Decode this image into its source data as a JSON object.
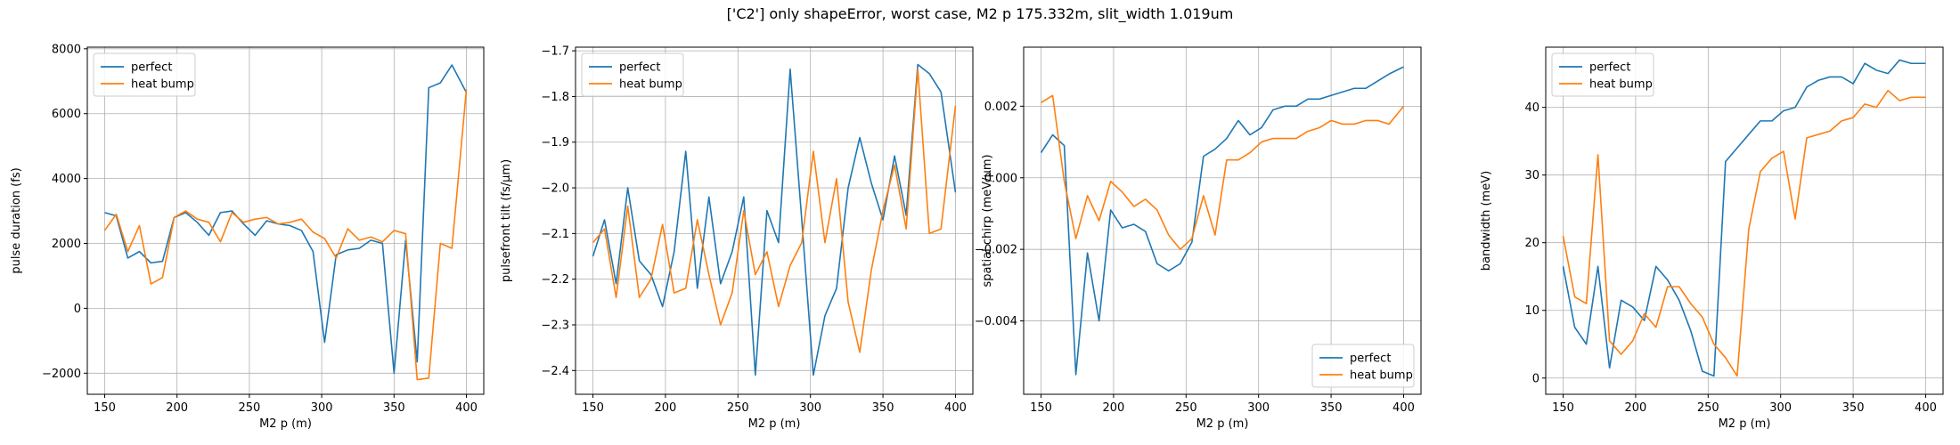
{
  "title": "['C2'] only shapeError, worst case, M2 p 175.332m, slit_width 1.019um",
  "colors": {
    "perfect": "#1f77b4",
    "heat_bump": "#ff7f0e",
    "grid": "#b0b0b0"
  },
  "chart_data": [
    {
      "type": "line",
      "xlabel": "M2 p (m)",
      "ylabel": "pulse duration (fs)",
      "xlim": [
        138,
        412
      ],
      "ylim": [
        -2650,
        8050
      ],
      "xticks": [
        150,
        200,
        250,
        300,
        350,
        400
      ],
      "yticks": [
        -2000,
        0,
        2000,
        4000,
        6000,
        8000
      ],
      "grid": true,
      "legend": "upper left",
      "x": [
        150,
        158,
        166,
        174,
        182,
        190,
        198,
        206,
        214,
        222,
        230,
        238,
        246,
        254,
        262,
        270,
        278,
        286,
        294,
        302,
        310,
        318,
        326,
        334,
        342,
        350,
        358,
        366,
        374,
        382,
        390,
        400
      ],
      "series": [
        {
          "name": "perfect",
          "values": [
            2950,
            2850,
            1550,
            1750,
            1400,
            1450,
            2800,
            2950,
            2650,
            2250,
            2950,
            3000,
            2600,
            2250,
            2700,
            2600,
            2550,
            2400,
            1750,
            -1050,
            1650,
            1800,
            1850,
            2100,
            2000,
            -2000,
            2100,
            -1650,
            6800,
            6950,
            7500,
            6650
          ]
        },
        {
          "name": "heat bump",
          "values": [
            2400,
            2900,
            1750,
            2550,
            750,
            950,
            2800,
            3000,
            2750,
            2650,
            2050,
            2950,
            2650,
            2750,
            2800,
            2600,
            2650,
            2750,
            2350,
            2150,
            1550,
            2450,
            2100,
            2200,
            2050,
            2400,
            2300,
            -2200,
            -2150,
            2000,
            1850,
            6750
          ]
        }
      ]
    },
    {
      "type": "line",
      "xlabel": "M2 p (m)",
      "ylabel": "pulsefront tilt (fs/μm)",
      "xlim": [
        138,
        412
      ],
      "ylim": [
        -2.452,
        -1.692
      ],
      "xticks": [
        150,
        200,
        250,
        300,
        350,
        400
      ],
      "yticks": [
        -2.4,
        -2.3,
        -2.2,
        -2.1,
        -2.0,
        -1.9,
        -1.8,
        -1.7
      ],
      "grid": true,
      "legend": "upper left",
      "x": [
        150,
        158,
        166,
        174,
        182,
        190,
        198,
        206,
        214,
        222,
        230,
        238,
        246,
        254,
        262,
        270,
        278,
        286,
        294,
        302,
        310,
        318,
        326,
        334,
        342,
        350,
        358,
        366,
        374,
        382,
        390,
        400
      ],
      "series": [
        {
          "name": "perfect",
          "values": [
            -2.15,
            -2.07,
            -2.21,
            -2.0,
            -2.16,
            -2.19,
            -2.26,
            -2.14,
            -1.92,
            -2.22,
            -2.02,
            -2.21,
            -2.14,
            -2.02,
            -2.41,
            -2.05,
            -2.12,
            -1.74,
            -2.07,
            -2.41,
            -2.28,
            -2.22,
            -2.0,
            -1.89,
            -1.99,
            -2.07,
            -1.93,
            -2.06,
            -1.73,
            -1.75,
            -1.79,
            -2.01
          ]
        },
        {
          "name": "heat bump",
          "values": [
            -2.12,
            -2.09,
            -2.24,
            -2.04,
            -2.24,
            -2.2,
            -2.08,
            -2.23,
            -2.22,
            -2.07,
            -2.19,
            -2.3,
            -2.23,
            -2.05,
            -2.19,
            -2.14,
            -2.26,
            -2.17,
            -2.12,
            -1.92,
            -2.12,
            -1.98,
            -2.25,
            -2.36,
            -2.18,
            -2.05,
            -1.95,
            -2.09,
            -1.74,
            -2.1,
            -2.09,
            -1.82
          ]
        }
      ]
    },
    {
      "type": "line",
      "xlabel": "M2 p (m)",
      "ylabel": "spatial chirp (meV/μm)",
      "xlim": [
        138,
        412
      ],
      "ylim": [
        -0.00605,
        0.00365
      ],
      "xticks": [
        150,
        200,
        250,
        300,
        350,
        400
      ],
      "yticks": [
        -0.004,
        -0.002,
        0.0,
        0.002
      ],
      "ytick_labels": [
        "−0.004",
        "−0.002",
        "0.000",
        "0.002"
      ],
      "grid": true,
      "legend": "lower right",
      "x": [
        150,
        158,
        166,
        174,
        182,
        190,
        198,
        206,
        214,
        222,
        230,
        238,
        246,
        254,
        262,
        270,
        278,
        286,
        294,
        302,
        310,
        318,
        326,
        334,
        342,
        350,
        358,
        366,
        374,
        382,
        390,
        400
      ],
      "series": [
        {
          "name": "perfect",
          "values": [
            0.0007,
            0.0012,
            0.0009,
            -0.0055,
            -0.0021,
            -0.004,
            -0.0009,
            -0.0014,
            -0.0013,
            -0.0015,
            -0.0024,
            -0.0026,
            -0.0024,
            -0.0018,
            0.0006,
            0.0008,
            0.0011,
            0.0016,
            0.0012,
            0.0014,
            0.0019,
            0.002,
            0.002,
            0.0022,
            0.0022,
            0.0023,
            0.0024,
            0.0025,
            0.0025,
            0.0027,
            0.0029,
            0.0031
          ]
        },
        {
          "name": "heat bump",
          "values": [
            0.0021,
            0.0023,
            -0.0001,
            -0.0017,
            -0.0005,
            -0.0012,
            -0.0001,
            -0.0004,
            -0.0008,
            -0.0006,
            -0.0009,
            -0.0016,
            -0.002,
            -0.0017,
            -0.0005,
            -0.0016,
            0.0005,
            0.0005,
            0.0007,
            0.001,
            0.0011,
            0.0011,
            0.0011,
            0.0013,
            0.0014,
            0.0016,
            0.0015,
            0.0015,
            0.0016,
            0.0016,
            0.0015,
            0.002
          ]
        }
      ]
    },
    {
      "type": "line",
      "xlabel": "M2 p (m)",
      "ylabel": "bandwidth (meV)",
      "xlim": [
        138,
        412
      ],
      "ylim": [
        -2.4,
        48.9
      ],
      "xticks": [
        150,
        200,
        250,
        300,
        350,
        400
      ],
      "yticks": [
        0,
        10,
        20,
        30,
        40
      ],
      "grid": true,
      "legend": "upper left",
      "x": [
        150,
        158,
        166,
        174,
        182,
        190,
        198,
        206,
        214,
        222,
        230,
        238,
        246,
        254,
        262,
        270,
        278,
        286,
        294,
        302,
        310,
        318,
        326,
        334,
        342,
        350,
        358,
        366,
        374,
        382,
        390,
        400
      ],
      "series": [
        {
          "name": "perfect",
          "values": [
            16.5,
            7.5,
            5.0,
            16.5,
            1.5,
            11.5,
            10.5,
            8.5,
            16.5,
            14.5,
            11.5,
            7.0,
            1.0,
            0.3,
            32.0,
            34.0,
            36.0,
            38.0,
            38.0,
            39.5,
            40.0,
            43.0,
            44.0,
            44.5,
            44.5,
            43.5,
            46.5,
            45.5,
            45.0,
            47.0,
            46.5,
            46.5
          ]
        },
        {
          "name": "heat bump",
          "values": [
            21.0,
            12.0,
            11.0,
            33.0,
            5.5,
            3.5,
            5.5,
            9.5,
            7.5,
            13.5,
            13.5,
            11.0,
            9.0,
            5.0,
            3.0,
            0.3,
            22.0,
            30.5,
            32.5,
            33.5,
            23.5,
            35.5,
            36.0,
            36.5,
            38.0,
            38.5,
            40.5,
            40.0,
            42.5,
            41.0,
            41.5,
            41.5
          ]
        }
      ]
    }
  ]
}
